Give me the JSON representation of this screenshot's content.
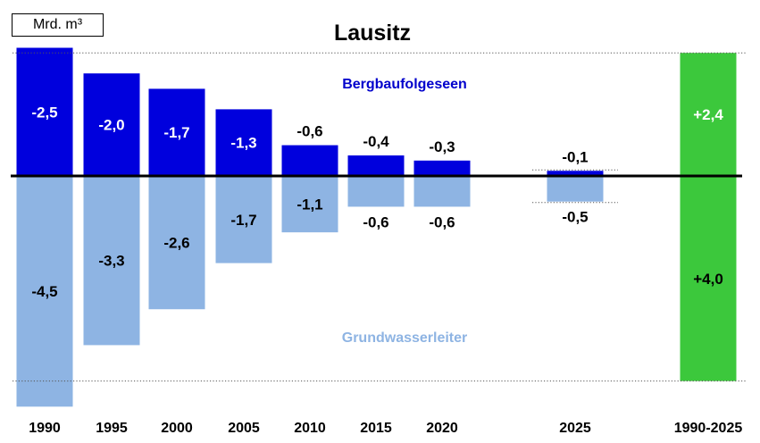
{
  "unit": "Mrd. m³",
  "colors": {
    "lakes": "#0000dd",
    "aquifer": "#8eb4e3",
    "total": "#3cc83c",
    "baseline": "#000000",
    "lakes_label": "#0000cc",
    "aquifer_label": "#8eb4e3"
  },
  "chart_data": {
    "type": "bar",
    "title": "Lausitz",
    "categories": [
      "1990",
      "1995",
      "2000",
      "2005",
      "2010",
      "2015",
      "2020",
      "2025",
      "1990-2025"
    ],
    "series": [
      {
        "name": "Bergbaufolgeseen",
        "values": [
          -2.5,
          -2.0,
          -1.7,
          -1.3,
          -0.6,
          -0.4,
          -0.3,
          -0.1,
          2.4
        ],
        "labels": [
          "-2,5",
          "-2,0",
          "-1,7",
          "-1,3",
          "-0,6",
          "-0,4",
          "-0,3",
          "-0,1",
          "+2,4"
        ]
      },
      {
        "name": "Grundwasserleiter",
        "values": [
          -4.5,
          -3.3,
          -2.6,
          -1.7,
          -1.1,
          -0.6,
          -0.6,
          -0.5,
          4.0
        ],
        "labels": [
          "-4,5",
          "-3,3",
          "-2,6",
          "-1,7",
          "-1,1",
          "-0,6",
          "-0,6",
          "-0,5",
          "+4,0"
        ]
      }
    ],
    "ylabel": "",
    "grid": false,
    "legend": "inline"
  }
}
